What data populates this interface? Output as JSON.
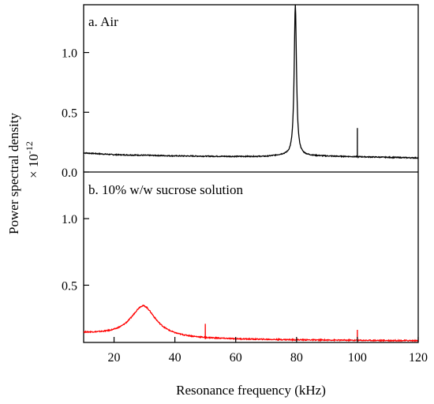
{
  "chart_data": {
    "type": "line",
    "shared_x_axis": {
      "label": "Resonance frequency (kHz)",
      "range": [
        10,
        120
      ],
      "ticks": [
        20,
        40,
        60,
        80,
        100,
        120
      ]
    },
    "shared_y_axis": {
      "label": "Power spectral density",
      "multiplier": "× 10",
      "multiplier_exponent": "-12"
    },
    "panels": [
      {
        "title": "a. Air",
        "y_range": [
          0.0,
          1.4
        ],
        "y_ticks": [
          0.0,
          0.5,
          1.0
        ],
        "y_tick_labels": [
          "0.0",
          "0.5",
          "1.0"
        ],
        "color": "#000000",
        "baseline": [
          [
            10,
            0.16
          ],
          [
            20,
            0.145
          ],
          [
            30,
            0.14
          ],
          [
            40,
            0.135
          ],
          [
            50,
            0.132
          ],
          [
            60,
            0.13
          ],
          [
            70,
            0.13
          ],
          [
            75,
            0.14
          ],
          [
            120,
            0.118
          ]
        ],
        "peaks": [
          {
            "center": 79.6,
            "height": 1.27,
            "width": 0.45,
            "kind": "lorentzian"
          },
          {
            "center": 100.0,
            "height": 0.24,
            "kind": "spike"
          }
        ]
      },
      {
        "title": "b. 10% w/w sucrose solution",
        "y_range": [
          0.07,
          1.35
        ],
        "y_ticks": [
          0.5,
          1.0
        ],
        "y_tick_labels": [
          "0.5",
          "1.0"
        ],
        "color": "#ff0000",
        "baseline": [
          [
            10,
            0.135
          ],
          [
            20,
            0.12
          ],
          [
            30,
            0.11
          ],
          [
            40,
            0.1
          ],
          [
            50,
            0.095
          ],
          [
            60,
            0.092
          ],
          [
            80,
            0.088
          ],
          [
            100,
            0.085
          ],
          [
            120,
            0.083
          ]
        ],
        "peaks": [
          {
            "center": 29.6,
            "height": 0.235,
            "width": 5.0,
            "kind": "lorentzian"
          },
          {
            "center": 50.0,
            "height": 0.115,
            "kind": "spike"
          },
          {
            "center": 100.0,
            "height": 0.08,
            "kind": "spike"
          }
        ]
      }
    ]
  }
}
